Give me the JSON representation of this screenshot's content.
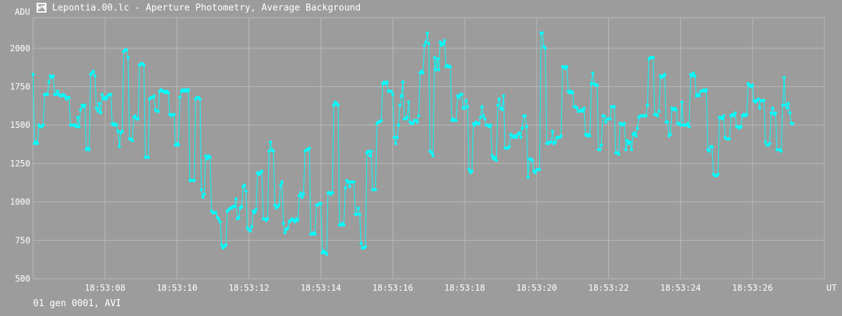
{
  "window": {
    "title": "Lepontia.00.lc - Aperture Photometry, Average Background",
    "icon": "chart-window-icon"
  },
  "footer": {
    "info": "01 gen 0001, AVI"
  },
  "colors": {
    "background": "#9c9c9c",
    "grid": "#b9b9b9",
    "series": "#00ffff",
    "text": "#ffffff"
  },
  "chart_data": {
    "type": "line",
    "title": "",
    "ylabel": "ADU",
    "xlabel": "UT",
    "ylim": [
      500,
      2200
    ],
    "xlim": [
      6.0,
      28.0
    ],
    "yticks": [
      500,
      750,
      1000,
      1250,
      1500,
      1750,
      2000
    ],
    "xtick_values": [
      8,
      10,
      12,
      14,
      16,
      18,
      20,
      22,
      24,
      26
    ],
    "xtick_labels": [
      "18:53:08",
      "18:53:10",
      "18:53:12",
      "18:53:14",
      "18:53:16",
      "18:53:18",
      "18:53:20",
      "18:53:22",
      "18:53:24",
      "18:53:26"
    ],
    "grid": true,
    "series": [
      {
        "name": "",
        "x_start": 6.0,
        "x_step": 0.04,
        "values": [
          1830,
          1380,
          1390,
          1380,
          1500,
          1490,
          1490,
          1500,
          1700,
          1700,
          1700,
          1780,
          1820,
          1810,
          1820,
          1700,
          1700,
          1720,
          1700,
          1690,
          1690,
          1700,
          1690,
          1670,
          1680,
          1680,
          1500,
          1500,
          1500,
          1500,
          1490,
          1550,
          1490,
          1600,
          1630,
          1620,
          1630,
          1340,
          1350,
          1340,
          1830,
          1840,
          1850,
          1820,
          1610,
          1590,
          1640,
          1580,
          1700,
          1670,
          1680,
          1670,
          1690,
          1700,
          1700,
          1510,
          1500,
          1510,
          1500,
          1460,
          1360,
          1450,
          1460,
          1980,
          1990,
          1990,
          1940,
          1410,
          1410,
          1400,
          1550,
          1560,
          1540,
          1540,
          1890,
          1900,
          1900,
          1890,
          1290,
          1290,
          1290,
          1670,
          1680,
          1680,
          1690,
          1600,
          1590,
          1590,
          1720,
          1730,
          1720,
          1720,
          1710,
          1720,
          1710,
          1570,
          1560,
          1570,
          1570,
          1370,
          1380,
          1370,
          1680,
          1720,
          1730,
          1720,
          1730,
          1720,
          1730,
          1140,
          1140,
          1140,
          1140,
          1670,
          1680,
          1680,
          1670,
          1080,
          1030,
          1050,
          1300,
          1280,
          1300,
          1290,
          940,
          930,
          930,
          930,
          900,
          890,
          870,
          720,
          700,
          710,
          720,
          940,
          950,
          960,
          960,
          970,
          970,
          1020,
          890,
          900,
          960,
          970,
          1100,
          1110,
          1070,
          830,
          820,
          810,
          840,
          940,
          930,
          950,
          1190,
          1180,
          1190,
          1200,
          890,
          890,
          880,
          890,
          1330,
          1390,
          1340,
          1330,
          980,
          960,
          970,
          980,
          1110,
          1130,
          860,
          800,
          820,
          830,
          870,
          880,
          890,
          880,
          870,
          890,
          880,
          1040,
          1060,
          1030,
          1050,
          1330,
          1340,
          1340,
          1350,
          790,
          790,
          800,
          790,
          980,
          980,
          990,
          990,
          670,
          680,
          670,
          660,
          1060,
          1060,
          1050,
          1060,
          1630,
          1650,
          1640,
          1630,
          850,
          850,
          860,
          850,
          1090,
          1140,
          1130,
          1100,
          1130,
          1130,
          1130,
          920,
          920,
          960,
          920,
          730,
          700,
          700,
          710,
          1320,
          1330,
          1300,
          1330,
          1080,
          1080,
          1080,
          1510,
          1520,
          1520,
          1530,
          1770,
          1780,
          1770,
          1780,
          1720,
          1720,
          1720,
          1700,
          1420,
          1380,
          1420,
          1500,
          1630,
          1690,
          1780,
          1540,
          1540,
          1550,
          1650,
          1520,
          1510,
          1510,
          1530,
          1530,
          1520,
          1560,
          1840,
          1850,
          1840,
          2020,
          2040,
          2100,
          2030,
          1330,
          1320,
          1300,
          1940,
          1860,
          1930,
          1860,
          2040,
          2020,
          2030,
          2050,
          1880,
          1890,
          1880,
          1880,
          1530,
          1540,
          1530,
          1530,
          1690,
          1680,
          1700,
          1700,
          1610,
          1610,
          1660,
          1620,
          1210,
          1190,
          1200,
          1510,
          1500,
          1520,
          1510,
          1510,
          1550,
          1620,
          1560,
          1540,
          1500,
          1500,
          1490,
          1500,
          1300,
          1280,
          1290,
          1270,
          1630,
          1670,
          1610,
          1600,
          1690,
          1350,
          1350,
          1350,
          1360,
          1440,
          1430,
          1420,
          1430,
          1420,
          1440,
          1450,
          1420,
          1480,
          1560,
          1560,
          1490,
          1160,
          1280,
          1280,
          1270,
          1200,
          1190,
          1210,
          1210,
          1210,
          2100,
          2100,
          2010,
          2000,
          1380,
          1380,
          1390,
          1390,
          1460,
          1380,
          1390,
          1420,
          1420,
          1420,
          1430,
          1880,
          1880,
          1870,
          1880,
          1720,
          1710,
          1720,
          1710,
          1620,
          1620,
          1610,
          1590,
          1590,
          1600,
          1590,
          1610,
          1440,
          1430,
          1440,
          1430,
          1770,
          1840,
          1770,
          1760,
          1760,
          1340,
          1340,
          1370,
          1560,
          1560,
          1520,
          1540,
          1540,
          1540,
          1620,
          1620,
          1620,
          1320,
          1320,
          1310,
          1510,
          1510,
          1500,
          1510,
          1340,
          1400,
          1380,
          1390,
          1340,
          1440,
          1450,
          1430,
          1480,
          1550,
          1560,
          1560,
          1560,
          1560,
          1560,
          1630,
          1930,
          1940,
          1940,
          1940,
          1570,
          1570,
          1560,
          1590,
          1820,
          1810,
          1820,
          1830,
          1520,
          1520,
          1430,
          1440,
          1610,
          1600,
          1610,
          1600,
          1510,
          1510,
          1500,
          1650,
          1500,
          1500,
          1500,
          1510,
          1490,
          1830,
          1820,
          1840,
          1820,
          1690,
          1700,
          1690,
          1720,
          1720,
          1730,
          1720,
          1730,
          1340,
          1330,
          1360,
          1360,
          1180,
          1170,
          1170,
          1180,
          1550,
          1550,
          1540,
          1560,
          1420,
          1410,
          1410,
          1410,
          1560,
          1570,
          1560,
          1580,
          1490,
          1490,
          1480,
          1490,
          1560,
          1570,
          1560,
          1570,
          1770,
          1760,
          1750,
          1760,
          1660,
          1650,
          1660,
          1670,
          1610,
          1660,
          1660,
          1660,
          1390,
          1370,
          1370,
          1380,
          1580,
          1610,
          1570,
          1580,
          1340,
          1340,
          1340,
          1330,
          1630,
          1810,
          1630,
          1610,
          1640,
          1580,
          1510,
          1510
        ]
      }
    ]
  }
}
